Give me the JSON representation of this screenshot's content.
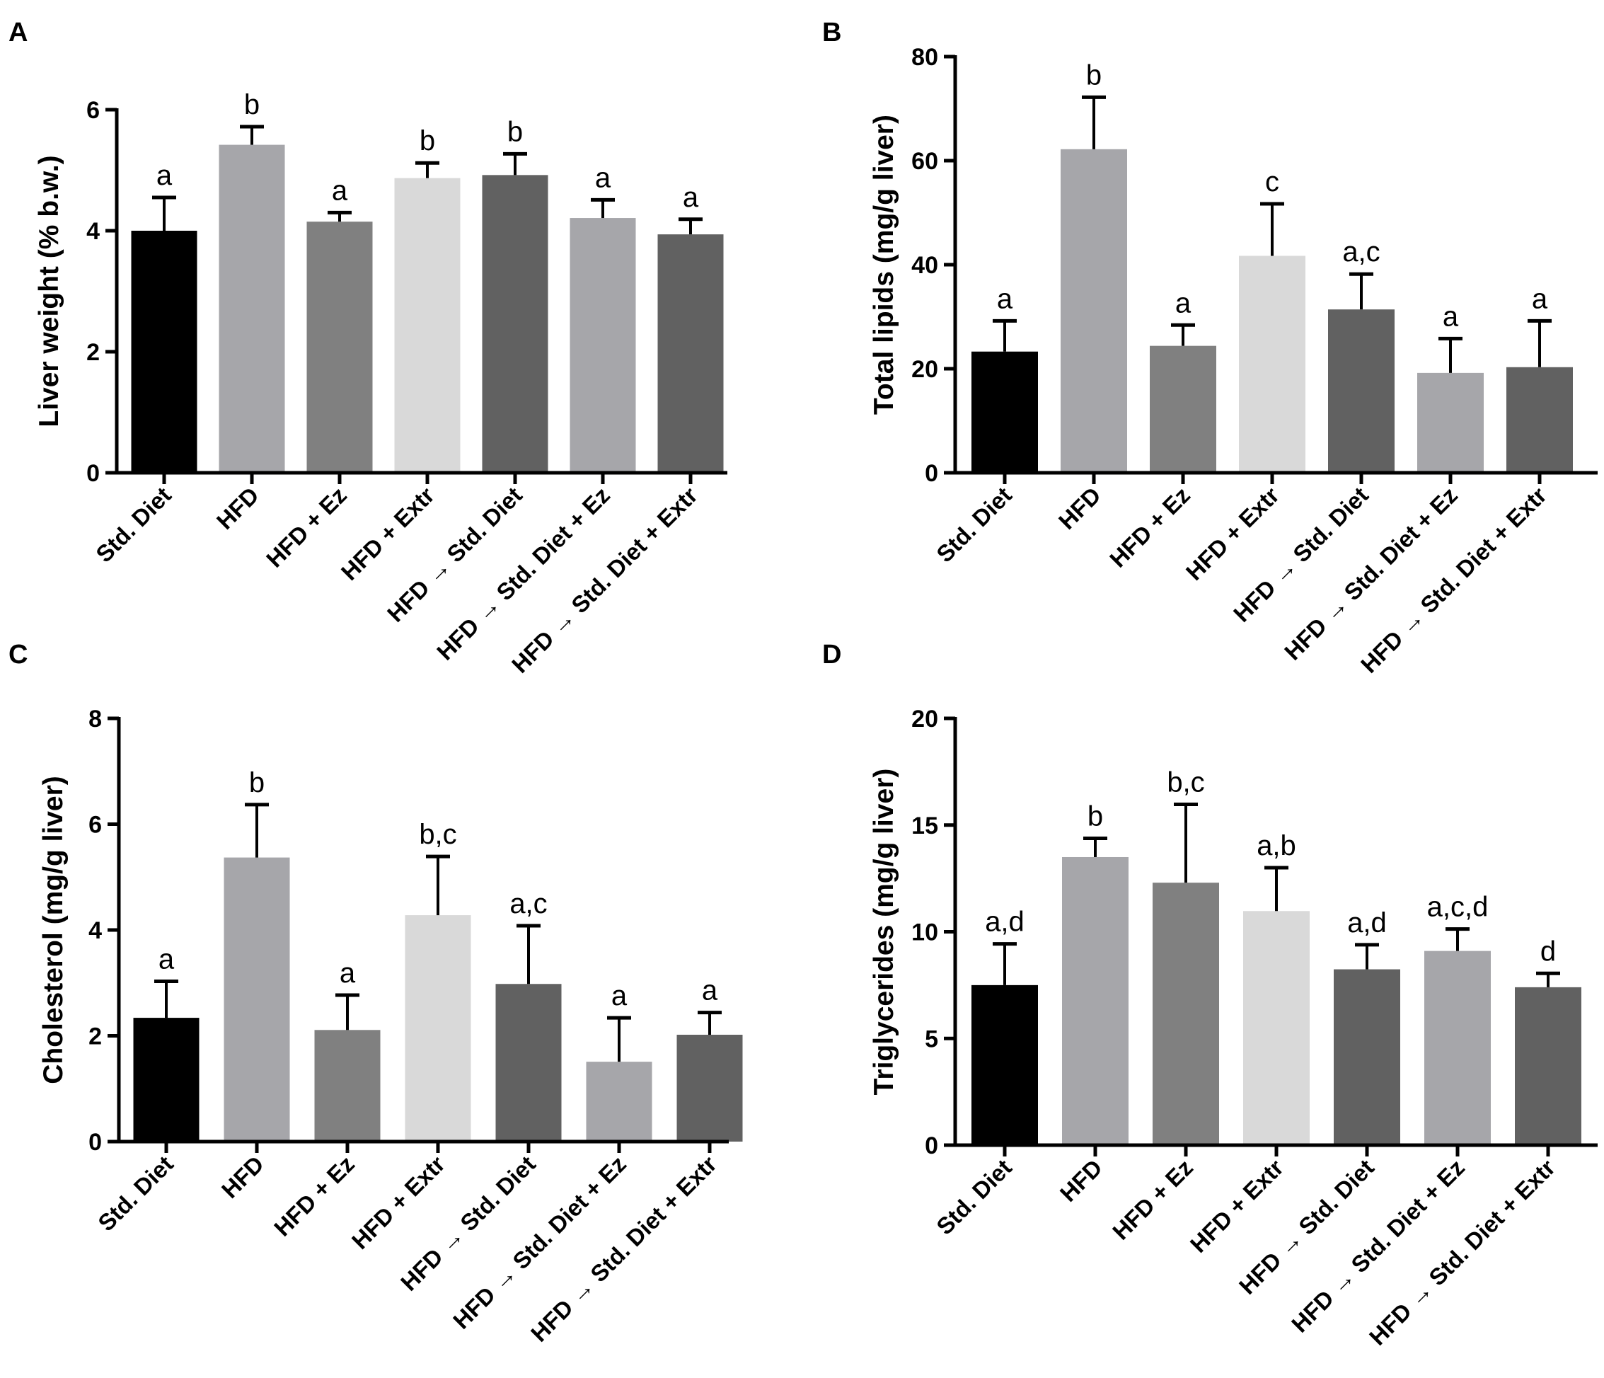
{
  "chart_data": [
    {
      "id": "A",
      "type": "bar",
      "panel_label": "A",
      "ylabel": "Liver weight (% b.w.)",
      "ylim": [
        0,
        6
      ],
      "yticks": [
        0,
        2,
        4,
        6
      ],
      "categories": [
        "Std. Diet",
        "HFD",
        "HFD + Ez",
        "HFD + Extr",
        "HFD → Std. Diet",
        "HFD → Std. Diet + Ez",
        "HFD → Std. Diet + Extr"
      ],
      "values": [
        4.0,
        5.42,
        4.15,
        4.87,
        4.92,
        4.21,
        3.94
      ],
      "errors": [
        0.55,
        0.3,
        0.15,
        0.25,
        0.35,
        0.3,
        0.25
      ],
      "significance": [
        "a",
        "b",
        "a",
        "b",
        "b",
        "a",
        "a"
      ],
      "colors": [
        "#000000",
        "#a6a6aa",
        "#808080",
        "#d9d9d9",
        "#616161",
        "#a6a6aa",
        "#616161"
      ]
    },
    {
      "id": "B",
      "type": "bar",
      "panel_label": "B",
      "ylabel": "Total lipids (mg/g liver)",
      "ylim": [
        0,
        80
      ],
      "yticks": [
        0,
        20,
        40,
        60,
        80
      ],
      "categories": [
        "Std. Diet",
        "HFD",
        "HFD + Ez",
        "HFD + Extr",
        "HFD → Std. Diet",
        "HFD → Std. Diet + Ez",
        "HFD → Std. Diet + Extr"
      ],
      "values": [
        23.3,
        62.2,
        24.4,
        41.7,
        31.4,
        19.2,
        20.3
      ],
      "errors": [
        5.9,
        10.0,
        4.0,
        10.0,
        6.8,
        6.6,
        8.9
      ],
      "significance": [
        "a",
        "b",
        "a",
        "c",
        "a,c",
        "a",
        "a"
      ],
      "colors": [
        "#000000",
        "#a6a6aa",
        "#808080",
        "#d9d9d9",
        "#616161",
        "#a6a6aa",
        "#616161"
      ]
    },
    {
      "id": "C",
      "type": "bar",
      "panel_label": "C",
      "ylabel": "Cholesterol (mg/g liver)",
      "ylim": [
        0,
        8
      ],
      "yticks": [
        0,
        2,
        4,
        6,
        8
      ],
      "categories": [
        "Std. Diet",
        "HFD",
        "HFD + Ez",
        "HFD + Extr",
        "HFD → Std. Diet",
        "HFD → Std. Diet + Ez",
        "HFD → Std. Diet + Extr"
      ],
      "values": [
        2.34,
        5.37,
        2.11,
        4.28,
        2.98,
        1.51,
        2.02
      ],
      "errors": [
        0.69,
        1.0,
        0.66,
        1.11,
        1.1,
        0.83,
        0.42
      ],
      "significance": [
        "a",
        "b",
        "a",
        "b,c",
        "a,c",
        "a",
        "a"
      ],
      "colors": [
        "#000000",
        "#a6a6aa",
        "#808080",
        "#d9d9d9",
        "#616161",
        "#a6a6aa",
        "#616161"
      ]
    },
    {
      "id": "D",
      "type": "bar",
      "panel_label": "D",
      "ylabel": "Triglycerides (mg/g liver)",
      "ylim": [
        0,
        20
      ],
      "yticks": [
        0,
        5,
        10,
        15,
        20
      ],
      "categories": [
        "Std. Diet",
        "HFD",
        "HFD + Ez",
        "HFD + Extr",
        "HFD → Std. Diet",
        "HFD → Std. Diet + Ez",
        "HFD → Std. Diet + Extr"
      ],
      "values": [
        7.5,
        13.5,
        12.3,
        10.97,
        8.24,
        9.1,
        7.4
      ],
      "errors": [
        1.93,
        0.88,
        3.67,
        2.03,
        1.15,
        1.03,
        0.65
      ],
      "significance": [
        "a,d",
        "b",
        "b,c",
        "a,b",
        "a,d",
        "a,c,d",
        "d"
      ],
      "colors": [
        "#000000",
        "#a6a6aa",
        "#808080",
        "#d9d9d9",
        "#616161",
        "#a6a6aa",
        "#616161"
      ]
    }
  ]
}
